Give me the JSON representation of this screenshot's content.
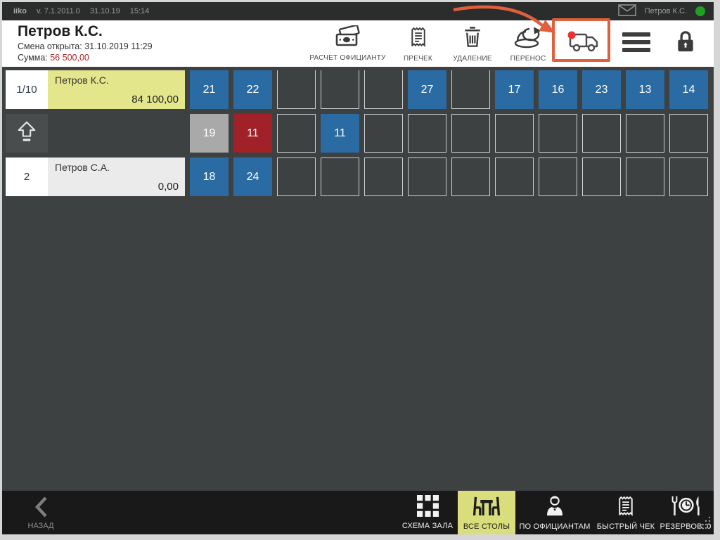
{
  "topbar": {
    "app": "iiko",
    "version": "v. 7.1.2011.0",
    "date": "31.10.19",
    "time": "15:14",
    "user": "Петров К.С."
  },
  "header": {
    "title": "Петров К.С.",
    "shift": "Смена открыта: 31.10.2019 11:29",
    "sum_label": "Сумма:",
    "sum_value": "56 500,00",
    "toolbar": [
      {
        "label": "РАСЧЕТ ОФИЦИАНТУ",
        "icon": "cash-icon"
      },
      {
        "label": "ПРЕЧЕК",
        "icon": "receipt-icon"
      },
      {
        "label": "УДАЛЕНИЕ",
        "icon": "trash-icon"
      },
      {
        "label": "ПЕРЕНОС",
        "icon": "transfer-icon"
      }
    ],
    "delivery_button": {
      "icon": "delivery-truck-icon",
      "badge": "red-dot"
    }
  },
  "sidebar": {
    "rows": [
      {
        "number": "1/10",
        "name": "Петров К.С.",
        "amount": "84 100,00",
        "highlight": "yellow"
      },
      {
        "icon": "page-up-icon"
      },
      {
        "number": "2",
        "name": "Петров С.А.",
        "amount": "0,00",
        "highlight": "gray"
      }
    ]
  },
  "tables_grid": {
    "columns": 12,
    "rows": [
      [
        {
          "n": "21",
          "c": "blue"
        },
        {
          "n": "22",
          "c": "blue"
        },
        null,
        null,
        null,
        {
          "n": "27",
          "c": "blue"
        },
        null,
        {
          "n": "17",
          "c": "blue"
        },
        {
          "n": "16",
          "c": "blue"
        },
        {
          "n": "23",
          "c": "blue"
        },
        {
          "n": "13",
          "c": "blue"
        },
        {
          "n": "14",
          "c": "blue"
        }
      ],
      [
        {
          "n": "19",
          "c": "gray"
        },
        {
          "n": "11",
          "c": "red"
        },
        null,
        {
          "n": "11",
          "c": "blue"
        },
        null,
        null,
        null,
        null,
        null,
        null,
        null,
        null
      ],
      [
        {
          "n": "18",
          "c": "blue"
        },
        {
          "n": "24",
          "c": "blue"
        },
        null,
        null,
        null,
        null,
        null,
        null,
        null,
        null,
        null,
        null
      ]
    ]
  },
  "bottombar": {
    "back": "НАЗАД",
    "tabs": [
      {
        "label": "СХЕМА ЗАЛА",
        "icon": "floor-plan-icon",
        "active": false
      },
      {
        "label": "ВСЕ СТОЛЫ",
        "icon": "tables-icon",
        "active": true
      },
      {
        "label": "ПО ОФИЦИАНТАМ",
        "icon": "waiters-icon",
        "active": false
      },
      {
        "label": "БЫСТРЫЙ ЧЕК",
        "icon": "quick-check-icon",
        "active": false
      },
      {
        "label": "РЕЗЕРВОВ: 0",
        "icon": "reserves-icon",
        "active": false
      }
    ]
  },
  "colors": {
    "accent_orange": "#e05f3c",
    "tile_blue": "#2b6ba3",
    "tile_red": "#a02127",
    "tile_gray": "#a9a9a9",
    "highlight_yellow": "#e4e68c",
    "tab_yellow": "#d9dd7b",
    "sum_red": "#b22222",
    "status_green": "#21a121",
    "badge_red": "#e83434"
  }
}
